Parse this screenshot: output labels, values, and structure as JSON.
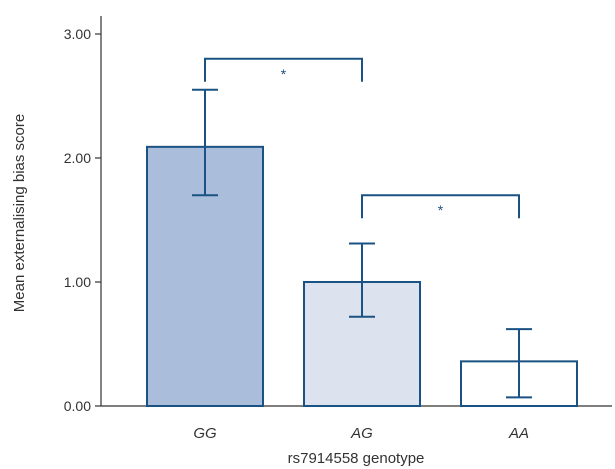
{
  "chart_data": {
    "type": "bar",
    "categories": [
      "GG",
      "AG",
      "AA"
    ],
    "values": [
      2.09,
      1.0,
      0.36
    ],
    "error_low": [
      1.7,
      0.72,
      0.07
    ],
    "error_high": [
      2.55,
      1.31,
      0.62
    ],
    "xlabel": "rs7914558 genotype",
    "ylabel": "Mean externalising bias score",
    "ylim": [
      0,
      3.1
    ],
    "yticks": [
      0,
      1,
      2,
      3
    ],
    "ytick_labels": [
      "0.00",
      "1.00",
      "2.00",
      "3.00"
    ],
    "bar_colors": [
      "#aabdda",
      "#dde3ee",
      "#ffffff"
    ],
    "stroke_color": "#1a5284",
    "grid": false,
    "significance": [
      {
        "from": "GG",
        "to": "AG",
        "y": 2.8,
        "label": "*"
      },
      {
        "from": "AG",
        "to": "AA",
        "y": 1.7,
        "label": "*"
      }
    ]
  }
}
